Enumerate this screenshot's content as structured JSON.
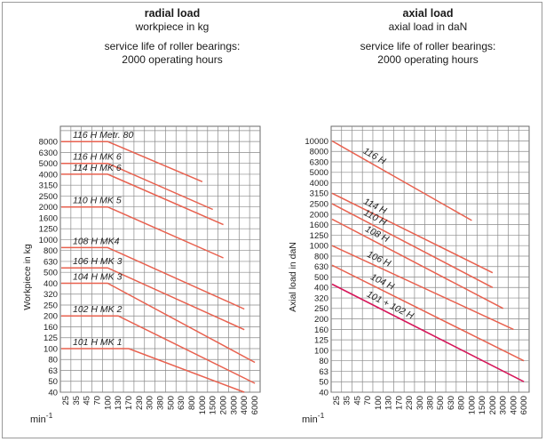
{
  "chart_data": [
    {
      "type": "line",
      "title": "radial load",
      "subtitle": "workpiece in kg",
      "note_line1": "service life of roller bearings:",
      "note_line2": "2000 operating hours",
      "ylabel": "Workpiece in kg",
      "xlabel": "min",
      "xlabel_sup": "-1",
      "x_scale": "log",
      "y_scale": "log",
      "grid": true,
      "xticks": [
        25,
        35,
        45,
        70,
        100,
        130,
        170,
        230,
        300,
        380,
        500,
        630,
        800,
        1000,
        1500,
        2000,
        3000,
        4000,
        6000
      ],
      "yticks": [
        40,
        50,
        63,
        80,
        100,
        125,
        160,
        200,
        250,
        320,
        400,
        500,
        630,
        800,
        1000,
        1250,
        1600,
        2000,
        2500,
        3150,
        4000,
        5000,
        6300,
        8000
      ],
      "line_color": "#e8614f",
      "series": [
        {
          "name": "116 H Metr. 80",
          "x": [
            25,
            100,
            1000
          ],
          "y": [
            8000,
            8000,
            3400
          ]
        },
        {
          "name": "116 H MK 6",
          "x": [
            25,
            100,
            1500
          ],
          "y": [
            5000,
            5000,
            1900
          ]
        },
        {
          "name": "114 H MK 6",
          "x": [
            25,
            100,
            2000
          ],
          "y": [
            4000,
            4000,
            1370
          ]
        },
        {
          "name": "110 H MK 5",
          "x": [
            25,
            100,
            2000
          ],
          "y": [
            2000,
            2000,
            680
          ]
        },
        {
          "name": "108 H MK4",
          "x": [
            25,
            100,
            4000
          ],
          "y": [
            850,
            850,
            230
          ]
        },
        {
          "name": "106 H MK 3",
          "x": [
            25,
            100,
            4000
          ],
          "y": [
            550,
            550,
            150
          ]
        },
        {
          "name": "104 H MK 3",
          "x": [
            25,
            100,
            6000
          ],
          "y": [
            400,
            400,
            75
          ]
        },
        {
          "name": "102 H MK 2",
          "x": [
            25,
            130,
            6000
          ],
          "y": [
            200,
            200,
            48
          ]
        },
        {
          "name": "101 H MK 1",
          "x": [
            25,
            170,
            4000
          ],
          "y": [
            100,
            100,
            40
          ]
        }
      ]
    },
    {
      "type": "line",
      "title": "axial load",
      "subtitle": "axial load in daN",
      "note_line1": "service life of roller bearings:",
      "note_line2": "2000 operating hours",
      "ylabel": "Axial load in daN",
      "xlabel": "min",
      "xlabel_sup": "-1",
      "x_scale": "log",
      "y_scale": "log",
      "grid": true,
      "xticks": [
        25,
        35,
        45,
        70,
        100,
        130,
        170,
        230,
        300,
        380,
        500,
        630,
        800,
        1000,
        1500,
        2000,
        3000,
        4000,
        6000
      ],
      "yticks": [
        40,
        50,
        63,
        80,
        100,
        125,
        160,
        200,
        250,
        320,
        400,
        500,
        630,
        800,
        1000,
        1250,
        1600,
        2000,
        2500,
        3150,
        4000,
        5000,
        6300,
        8000,
        10000
      ],
      "line_color": "#e8614f",
      "highlight_color": "#d6175a",
      "series": [
        {
          "name": "116 H",
          "x": [
            25,
            1000
          ],
          "y": [
            10000,
            1750
          ]
        },
        {
          "name": "114 H",
          "x": [
            25,
            2000
          ],
          "y": [
            3150,
            550
          ]
        },
        {
          "name": "110 H",
          "x": [
            25,
            2000
          ],
          "y": [
            2500,
            400
          ]
        },
        {
          "name": "108 H",
          "x": [
            25,
            3000
          ],
          "y": [
            1800,
            250
          ]
        },
        {
          "name": "106 H",
          "x": [
            25,
            4000
          ],
          "y": [
            1000,
            160
          ]
        },
        {
          "name": "104 H",
          "x": [
            25,
            6000
          ],
          "y": [
            650,
            80
          ]
        },
        {
          "name": "101 + 102 H",
          "x": [
            25,
            6000
          ],
          "y": [
            430,
            50
          ]
        }
      ]
    }
  ]
}
